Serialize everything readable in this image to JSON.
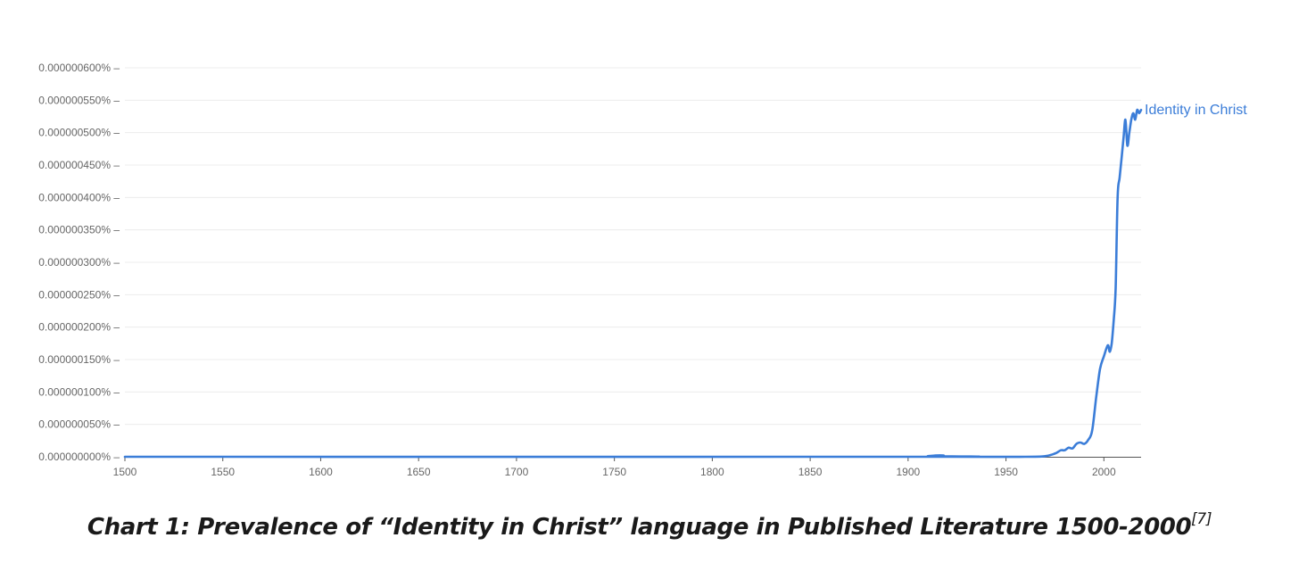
{
  "chart_data": {
    "type": "line",
    "title": "",
    "xlabel": "",
    "ylabel": "",
    "xlim": [
      1500,
      2019
    ],
    "ylim": [
      0,
      6e-07
    ],
    "grid": true,
    "x_ticks": [
      1500,
      1550,
      1600,
      1650,
      1700,
      1750,
      1800,
      1850,
      1900,
      1950,
      2000
    ],
    "x_tick_labels": [
      "1500",
      "1550",
      "1600",
      "1650",
      "1700",
      "1750",
      "1800",
      "1850",
      "1900",
      "1950",
      "2000"
    ],
    "y_ticks": [
      0,
      5e-08,
      1e-07,
      1.5e-07,
      2e-07,
      2.5e-07,
      3e-07,
      3.5e-07,
      4e-07,
      4.5e-07,
      5e-07,
      5.5e-07,
      6e-07
    ],
    "y_tick_labels": [
      "0.000000000%",
      "0.000000050%",
      "0.000000100%",
      "0.000000150%",
      "0.000000200%",
      "0.000000250%",
      "0.000000300%",
      "0.000000350%",
      "0.000000400%",
      "0.000000450%",
      "0.000000500%",
      "0.000000550%",
      "0.000000600%"
    ],
    "series": [
      {
        "name": "Identity in Christ",
        "color": "#3b7dd8",
        "x": [
          1500,
          1905,
          1910,
          1914,
          1918,
          1922,
          1960,
          1970,
          1975,
          1978,
          1980,
          1982,
          1984,
          1986,
          1988,
          1990,
          1992,
          1994,
          1996,
          1998,
          2000,
          2002,
          2003,
          2004,
          2005,
          2006,
          2007,
          2008,
          2009,
          2010,
          2011,
          2012,
          2013,
          2014,
          2015,
          2016,
          2017,
          2018,
          2019
        ],
        "y": [
          0,
          0,
          1e-09,
          2e-09,
          2e-09,
          0,
          0,
          1e-09,
          5e-09,
          1e-08,
          1e-08,
          1.4e-08,
          1.3e-08,
          2e-08,
          2.2e-08,
          2e-08,
          2.6e-08,
          4e-08,
          9e-08,
          1.35e-07,
          1.55e-07,
          1.72e-07,
          1.62e-07,
          1.75e-07,
          2.1e-07,
          2.6e-07,
          4e-07,
          4.3e-07,
          4.6e-07,
          4.9e-07,
          5.2e-07,
          4.8e-07,
          5e-07,
          5.2e-07,
          5.3e-07,
          5.2e-07,
          5.35e-07,
          5.3e-07,
          5.35e-07
        ]
      }
    ]
  },
  "caption": {
    "text": "Chart 1: Prevalence of “Identity in Christ” language in Published Literature 1500-2000",
    "ref": "[7]"
  }
}
